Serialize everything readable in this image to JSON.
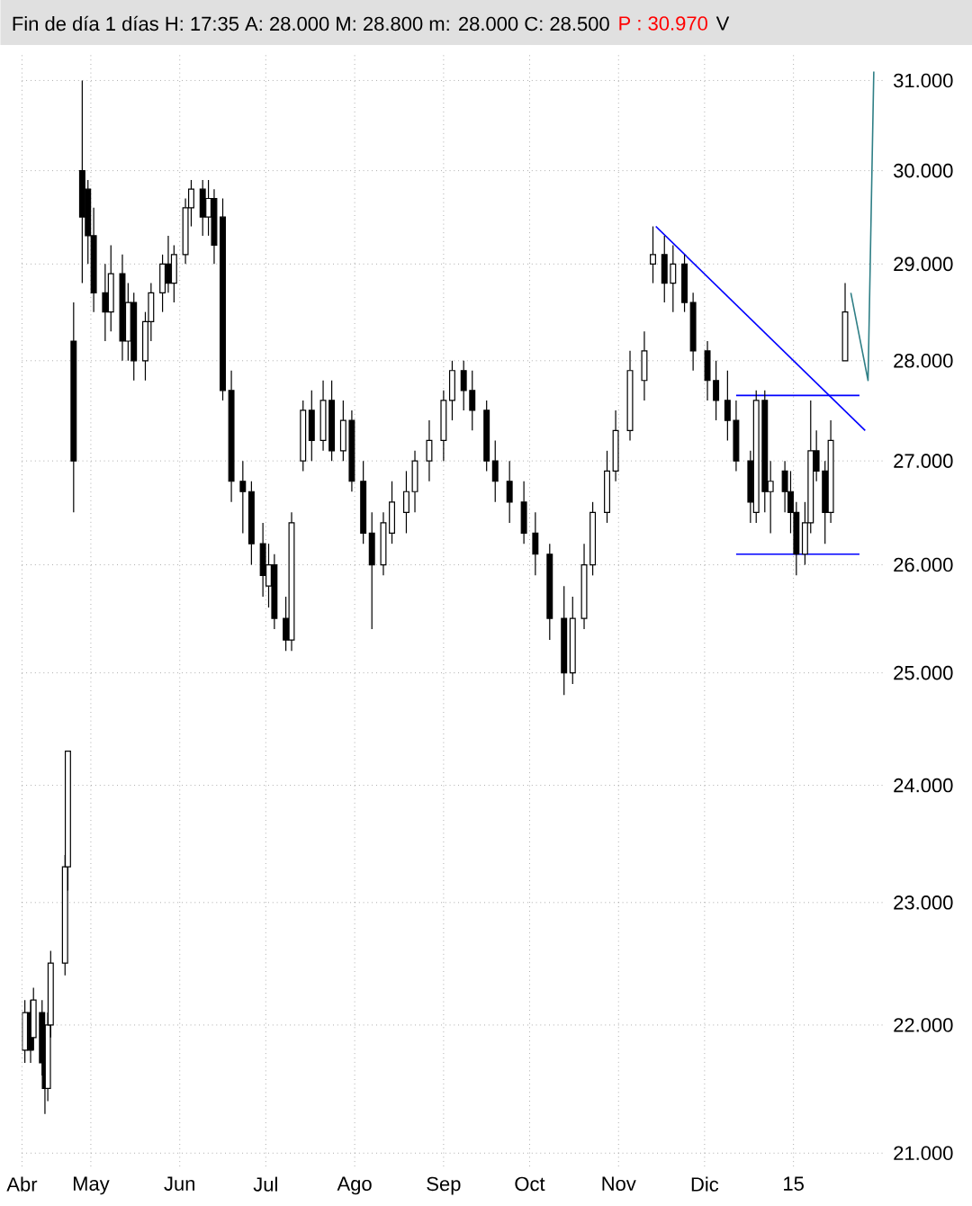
{
  "chart_data": {
    "type": "candlestick",
    "title": "Fin de día 1 días H: 17:35 A: 28.000 M: 28.800 m: 28.000 C: 28.500",
    "annotations": [
      "P : 30.970",
      "V"
    ],
    "x": [
      "2014-04-08",
      "2014-04-10",
      "2014-04-11",
      "2014-04-14",
      "2014-04-15",
      "2014-04-16",
      "2014-04-17",
      "2014-04-22",
      "2014-04-23",
      "2014-04-25",
      "2014-04-28",
      "2014-04-30",
      "2014-05-02",
      "2014-05-06",
      "2014-05-08",
      "2014-05-12",
      "2014-05-14",
      "2014-05-16",
      "2014-05-20",
      "2014-05-22",
      "2014-05-26",
      "2014-05-28",
      "2014-05-30",
      "2014-06-03",
      "2014-06-05",
      "2014-06-09",
      "2014-06-11",
      "2014-06-13",
      "2014-06-16",
      "2014-06-19",
      "2014-06-23",
      "2014-06-26",
      "2014-06-30",
      "2014-07-02",
      "2014-07-04",
      "2014-07-08",
      "2014-07-10",
      "2014-07-14",
      "2014-07-17",
      "2014-07-21",
      "2014-07-24",
      "2014-07-28",
      "2014-07-31",
      "2014-08-04",
      "2014-08-07",
      "2014-08-11",
      "2014-08-14",
      "2014-08-19",
      "2014-08-22",
      "2014-08-27",
      "2014-09-01",
      "2014-09-04",
      "2014-09-08",
      "2014-09-11",
      "2014-09-16",
      "2014-09-19",
      "2014-09-24",
      "2014-09-29",
      "2014-10-03",
      "2014-10-08",
      "2014-10-13",
      "2014-10-16",
      "2014-10-20",
      "2014-10-23",
      "2014-10-28",
      "2014-10-31",
      "2014-11-05",
      "2014-11-10",
      "2014-11-13",
      "2014-11-17",
      "2014-11-20",
      "2014-11-24",
      "2014-11-27",
      "2014-12-02",
      "2014-12-05",
      "2014-12-09",
      "2014-12-12",
      "2014-12-17",
      "2014-12-19",
      "2014-12-22",
      "2014-12-24",
      "2014-12-29",
      "2014-12-31",
      "2015-01-02",
      "2015-01-05",
      "2015-01-07",
      "2015-01-09",
      "2015-01-12",
      "2015-01-14",
      "2015-01-19"
    ],
    "ohlc": [
      [
        21.8,
        22.2,
        21.7,
        22.1
      ],
      [
        22.1,
        22.2,
        21.7,
        21.8
      ],
      [
        21.9,
        22.3,
        21.8,
        22.2
      ],
      [
        22.1,
        22.2,
        21.6,
        21.7
      ],
      [
        21.7,
        21.9,
        21.3,
        21.5
      ],
      [
        21.5,
        22.1,
        21.4,
        22.0
      ],
      [
        22.0,
        22.6,
        21.9,
        22.5
      ],
      [
        22.5,
        23.4,
        22.4,
        23.3
      ],
      [
        23.3,
        24.3,
        23.1,
        24.3
      ],
      [
        28.2,
        28.6,
        26.5,
        27.0
      ],
      [
        30.0,
        31.0,
        28.8,
        29.5
      ],
      [
        29.8,
        29.9,
        29.0,
        29.3
      ],
      [
        29.3,
        29.6,
        28.5,
        28.7
      ],
      [
        28.7,
        29.0,
        28.2,
        28.5
      ],
      [
        28.5,
        29.2,
        28.3,
        28.9
      ],
      [
        28.9,
        29.1,
        28.0,
        28.2
      ],
      [
        28.2,
        28.8,
        28.0,
        28.6
      ],
      [
        28.6,
        28.7,
        27.8,
        28.0
      ],
      [
        28.0,
        28.5,
        27.8,
        28.4
      ],
      [
        28.4,
        28.8,
        28.2,
        28.7
      ],
      [
        28.7,
        29.1,
        28.5,
        29.0
      ],
      [
        29.0,
        29.3,
        28.7,
        28.8
      ],
      [
        28.8,
        29.2,
        28.6,
        29.1
      ],
      [
        29.1,
        29.7,
        29.0,
        29.6
      ],
      [
        29.6,
        29.9,
        29.4,
        29.8
      ],
      [
        29.8,
        29.9,
        29.3,
        29.5
      ],
      [
        29.5,
        29.9,
        29.3,
        29.7
      ],
      [
        29.7,
        29.8,
        29.0,
        29.2
      ],
      [
        29.5,
        29.7,
        27.6,
        27.7
      ],
      [
        27.7,
        27.9,
        26.6,
        26.8
      ],
      [
        26.8,
        27.0,
        26.3,
        26.7
      ],
      [
        26.7,
        26.8,
        26.0,
        26.2
      ],
      [
        26.2,
        26.4,
        25.7,
        25.9
      ],
      [
        25.8,
        26.2,
        25.6,
        26.0
      ],
      [
        26.0,
        26.1,
        25.4,
        25.5
      ],
      [
        25.5,
        25.7,
        25.2,
        25.3
      ],
      [
        25.3,
        26.5,
        25.2,
        26.4
      ],
      [
        27.0,
        27.6,
        26.9,
        27.5
      ],
      [
        27.5,
        27.7,
        27.0,
        27.2
      ],
      [
        27.2,
        27.8,
        27.1,
        27.6
      ],
      [
        27.6,
        27.8,
        27.0,
        27.1
      ],
      [
        27.1,
        27.6,
        27.0,
        27.4
      ],
      [
        27.4,
        27.5,
        26.7,
        26.8
      ],
      [
        26.8,
        27.0,
        26.2,
        26.3
      ],
      [
        26.3,
        26.5,
        25.4,
        26.0
      ],
      [
        26.0,
        26.5,
        25.9,
        26.4
      ],
      [
        26.3,
        26.8,
        26.2,
        26.6
      ],
      [
        26.5,
        26.9,
        26.3,
        26.7
      ],
      [
        26.7,
        27.1,
        26.5,
        27.0
      ],
      [
        27.0,
        27.4,
        26.8,
        27.2
      ],
      [
        27.2,
        27.7,
        27.0,
        27.6
      ],
      [
        27.6,
        28.0,
        27.4,
        27.9
      ],
      [
        27.9,
        28.0,
        27.5,
        27.7
      ],
      [
        27.7,
        27.9,
        27.3,
        27.5
      ],
      [
        27.5,
        27.6,
        26.9,
        27.0
      ],
      [
        27.0,
        27.2,
        26.6,
        26.8
      ],
      [
        26.8,
        27.0,
        26.4,
        26.6
      ],
      [
        26.6,
        26.8,
        26.2,
        26.3
      ],
      [
        26.3,
        26.5,
        25.9,
        26.1
      ],
      [
        26.1,
        26.2,
        25.3,
        25.5
      ],
      [
        25.5,
        25.8,
        24.8,
        25.0
      ],
      [
        25.0,
        25.7,
        24.9,
        25.5
      ],
      [
        25.5,
        26.2,
        25.4,
        26.0
      ],
      [
        26.0,
        26.6,
        25.9,
        26.5
      ],
      [
        26.5,
        27.1,
        26.4,
        26.9
      ],
      [
        26.9,
        27.5,
        26.8,
        27.3
      ],
      [
        27.3,
        28.1,
        27.2,
        27.9
      ],
      [
        27.8,
        28.3,
        27.6,
        28.1
      ],
      [
        29.0,
        29.4,
        28.8,
        29.1
      ],
      [
        29.1,
        29.3,
        28.6,
        28.8
      ],
      [
        28.8,
        29.2,
        28.5,
        29.0
      ],
      [
        29.0,
        29.1,
        28.5,
        28.6
      ],
      [
        28.6,
        28.7,
        27.9,
        28.1
      ],
      [
        28.1,
        28.2,
        27.6,
        27.8
      ],
      [
        27.8,
        28.0,
        27.4,
        27.6
      ],
      [
        27.6,
        27.9,
        27.2,
        27.4
      ],
      [
        27.4,
        27.6,
        26.9,
        27.0
      ],
      [
        27.0,
        27.1,
        26.4,
        26.6
      ],
      [
        26.5,
        27.7,
        26.4,
        27.6
      ],
      [
        27.6,
        27.7,
        26.5,
        26.7
      ],
      [
        26.7,
        27.0,
        26.3,
        26.8
      ],
      [
        26.9,
        27.0,
        26.5,
        26.7
      ],
      [
        26.7,
        26.9,
        26.3,
        26.5
      ],
      [
        26.5,
        26.6,
        25.9,
        26.1
      ],
      [
        26.1,
        26.6,
        26.0,
        26.4
      ],
      [
        26.4,
        27.6,
        26.3,
        27.1
      ],
      [
        27.1,
        27.3,
        26.8,
        26.9
      ],
      [
        26.9,
        27.0,
        26.2,
        26.5
      ],
      [
        26.5,
        27.4,
        26.4,
        27.2
      ],
      [
        28.0,
        28.8,
        28.0,
        28.5
      ]
    ],
    "series": [
      {
        "type": "line",
        "color": "#0000ff",
        "x": [
          "2014-11-14",
          "2015-01-26"
        ],
        "values": [
          29.4,
          27.3
        ]
      },
      {
        "type": "line",
        "color": "#0000ff",
        "x": [
          "2014-12-12",
          "2015-01-24"
        ],
        "values": [
          27.65,
          27.65
        ]
      },
      {
        "type": "line",
        "color": "#0000ff",
        "x": [
          "2014-12-12",
          "2015-01-24"
        ],
        "values": [
          26.1,
          26.1
        ]
      },
      {
        "type": "line",
        "color": "#2f7f86",
        "x": [
          "2015-01-21",
          "2015-01-27",
          "2015-01-29"
        ],
        "values": [
          28.7,
          27.8,
          31.1
        ]
      }
    ],
    "xlim": [
      "2014-04-07",
      "2015-02-01"
    ],
    "xticks": [
      {
        "value": "2014-04-07",
        "label": "Abr"
      },
      {
        "value": "2014-05-01",
        "label": "May"
      },
      {
        "value": "2014-06-01",
        "label": "Jun"
      },
      {
        "value": "2014-07-01",
        "label": "Jul"
      },
      {
        "value": "2014-08-01",
        "label": "Ago"
      },
      {
        "value": "2014-09-01",
        "label": "Sep"
      },
      {
        "value": "2014-10-01",
        "label": "Oct"
      },
      {
        "value": "2014-11-01",
        "label": "Nov"
      },
      {
        "value": "2014-12-01",
        "label": "Dic"
      },
      {
        "value": "2015-01-01",
        "label": "15"
      }
    ],
    "ylim": [
      20.9,
      31.3
    ],
    "yticks": [
      {
        "value": 21,
        "label": "21.000"
      },
      {
        "value": 22,
        "label": "22.000"
      },
      {
        "value": 23,
        "label": "23.000"
      },
      {
        "value": 24,
        "label": "24.000"
      },
      {
        "value": 25,
        "label": "25.000"
      },
      {
        "value": 26,
        "label": "26.000"
      },
      {
        "value": 27,
        "label": "27.000"
      },
      {
        "value": 28,
        "label": "28.000"
      },
      {
        "value": 29,
        "label": "29.000"
      },
      {
        "value": 30,
        "label": "30.000"
      },
      {
        "value": 31,
        "label": "31.000"
      }
    ],
    "log": true,
    "grid": true,
    "line_style": "solid"
  }
}
